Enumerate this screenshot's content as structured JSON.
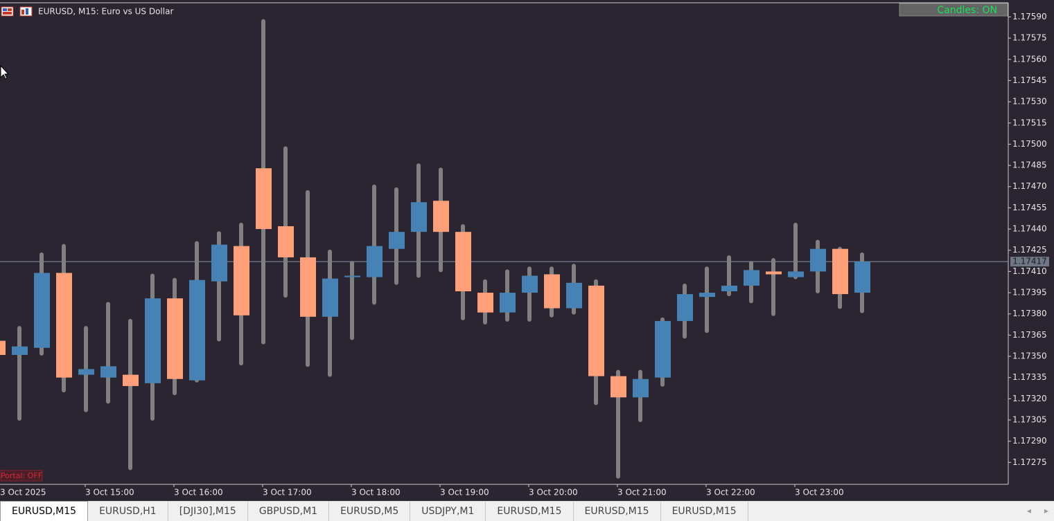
{
  "chart_data": {
    "type": "candlestick",
    "title": "EURUSD, M15:  Euro vs US Dollar",
    "categories": [
      "3 Oct 2025",
      null,
      null,
      null,
      "3 Oct 15:00",
      null,
      null,
      null,
      "3 Oct 16:00",
      null,
      null,
      null,
      "3 Oct 17:00",
      null,
      null,
      null,
      "3 Oct 18:00",
      null,
      null,
      null,
      "3 Oct 19:00",
      null,
      null,
      null,
      "3 Oct 20:00",
      null,
      null,
      null,
      "3 Oct 21:00",
      null,
      null,
      null,
      "3 Oct 22:00",
      null,
      null,
      null,
      "3 Oct 23:00",
      null,
      null,
      null
    ],
    "open": [
      1.17361,
      1.17351,
      1.17356,
      1.17409,
      1.17337,
      1.17335,
      1.17337,
      1.17331,
      1.17391,
      1.17333,
      1.17403,
      1.17428,
      1.17483,
      1.17442,
      1.1742,
      1.17378,
      1.17406,
      1.17406,
      1.17426,
      1.17438,
      1.1746,
      1.17438,
      1.17395,
      1.17381,
      1.17395,
      1.17408,
      1.17384,
      1.174,
      1.17336,
      1.17321,
      1.17335,
      1.17375,
      1.17392,
      1.17396,
      1.174,
      1.1741,
      1.17406,
      1.1741,
      1.17426,
      1.17395
    ],
    "high": [
      1.17362,
      1.1737,
      1.17422,
      1.17428,
      1.1737,
      1.17387,
      1.17375,
      1.17407,
      1.17404,
      1.1743,
      1.17437,
      1.17443,
      1.17587,
      1.17497,
      1.17466,
      1.17424,
      1.17416,
      1.1747,
      1.17468,
      1.17485,
      1.17482,
      1.17442,
      1.17403,
      1.1741,
      1.17412,
      1.17412,
      1.17414,
      1.17403,
      1.17339,
      1.17339,
      1.17376,
      1.174,
      1.17412,
      1.1742,
      1.17416,
      1.17418,
      1.17443,
      1.17431,
      1.17426,
      1.17422
    ],
    "low": [
      1.1735,
      1.17306,
      1.17352,
      1.17326,
      1.17312,
      1.17318,
      1.17271,
      1.17306,
      1.17324,
      1.17333,
      1.17362,
      1.17345,
      1.1736,
      1.17393,
      1.17344,
      1.17337,
      1.17363,
      1.17388,
      1.17402,
      1.17407,
      1.17411,
      1.17377,
      1.17374,
      1.17376,
      1.17376,
      1.17379,
      1.17381,
      1.17317,
      1.17265,
      1.17305,
      1.1733,
      1.17364,
      1.17368,
      1.17394,
      1.17389,
      1.1738,
      1.17406,
      1.17396,
      1.17385,
      1.17382
    ],
    "close": [
      1.17351,
      1.17357,
      1.17409,
      1.17335,
      1.17341,
      1.17343,
      1.17329,
      1.17391,
      1.17334,
      1.17404,
      1.17429,
      1.17379,
      1.1744,
      1.1742,
      1.17378,
      1.17405,
      1.17407,
      1.17428,
      1.17438,
      1.17459,
      1.17438,
      1.17396,
      1.17381,
      1.17395,
      1.17407,
      1.17384,
      1.17402,
      1.17336,
      1.17321,
      1.17334,
      1.17375,
      1.17394,
      1.17395,
      1.174,
      1.17411,
      1.17408,
      1.1741,
      1.17426,
      1.17394,
      1.17417
    ],
    "up_color": "#4682b4",
    "down_color": "#ffa07a",
    "wick_color": "#808080",
    "grid": false,
    "ylim": [
      1.1726,
      1.176
    ],
    "yticks": [
      {
        "value": 1.1759,
        "label": "1.17590"
      },
      {
        "value": 1.17575,
        "label": "1.17575"
      },
      {
        "value": 1.1756,
        "label": "1.17560"
      },
      {
        "value": 1.17545,
        "label": "1.17545"
      },
      {
        "value": 1.1753,
        "label": "1.17530"
      },
      {
        "value": 1.17515,
        "label": "1.17515"
      },
      {
        "value": 1.175,
        "label": "1.17500"
      },
      {
        "value": 1.17485,
        "label": "1.17485"
      },
      {
        "value": 1.1747,
        "label": "1.17470"
      },
      {
        "value": 1.17455,
        "label": "1.17455"
      },
      {
        "value": 1.1744,
        "label": "1.17440"
      },
      {
        "value": 1.17425,
        "label": "1.17425"
      },
      {
        "value": 1.1741,
        "label": "1.17410"
      },
      {
        "value": 1.17395,
        "label": "1.17395"
      },
      {
        "value": 1.1738,
        "label": "1.17380"
      },
      {
        "value": 1.17365,
        "label": "1.17365"
      },
      {
        "value": 1.1735,
        "label": "1.17350"
      },
      {
        "value": 1.17335,
        "label": "1.17335"
      },
      {
        "value": 1.1732,
        "label": "1.17320"
      },
      {
        "value": 1.17305,
        "label": "1.17305"
      },
      {
        "value": 1.1729,
        "label": "1.17290"
      },
      {
        "value": 1.17275,
        "label": "1.17275"
      }
    ],
    "current_price": {
      "value": 1.17417,
      "label": "1.17417"
    }
  },
  "toolbar": {
    "candles_button": "Candles: ON",
    "portal_label": "Portal: OFF"
  },
  "tabs": [
    "EURUSD,M15",
    "EURUSD,H1",
    "[DJI30],M15",
    "GBPUSD,M1",
    "EURUSD,M5",
    "USDJPY,M1",
    "EURUSD,M15",
    "EURUSD,M15",
    "EURUSD,M15"
  ],
  "active_tab": 0
}
